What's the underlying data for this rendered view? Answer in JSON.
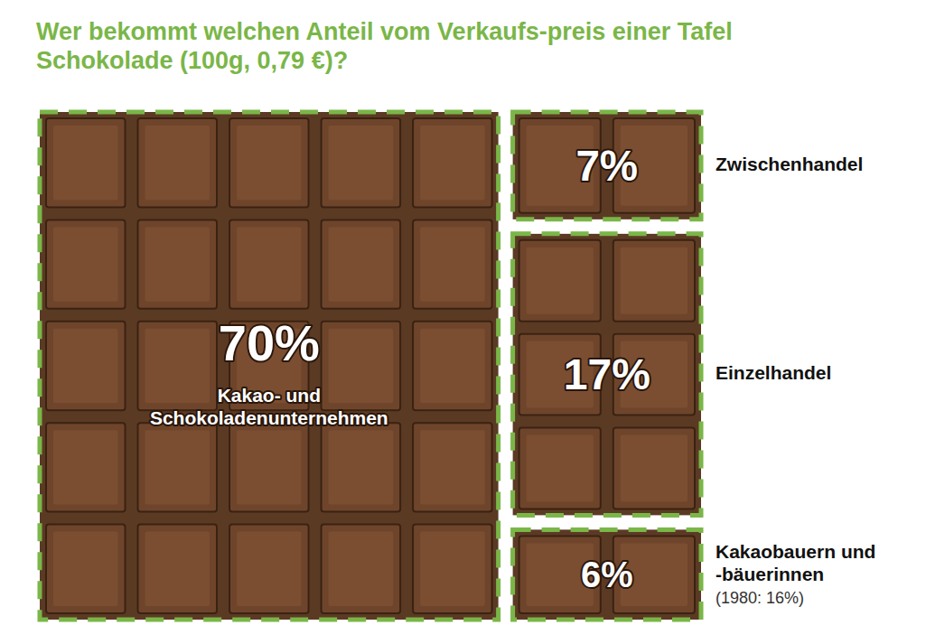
{
  "chart_data": {
    "type": "treemap",
    "title": "Wer bekommt welchen Anteil vom Verkaufs-preis einer Tafel Schokolade (100g, 0,79 €)?",
    "categories": [
      "Kakao- und Schokoladenunternehmen",
      "Zwischenhandel",
      "Einzelhandel",
      "Kakaobauern und -bäuerinnen"
    ],
    "values": [
      70,
      7,
      17,
      6
    ],
    "value_labels": [
      "70%",
      "7%",
      "17%",
      "6%"
    ],
    "color": "#5b3a24",
    "data_labels": true,
    "annotations": [
      {
        "text": "(1980: 16%)",
        "category": "Kakaobauern und -bäuerinnen"
      }
    ]
  }
}
